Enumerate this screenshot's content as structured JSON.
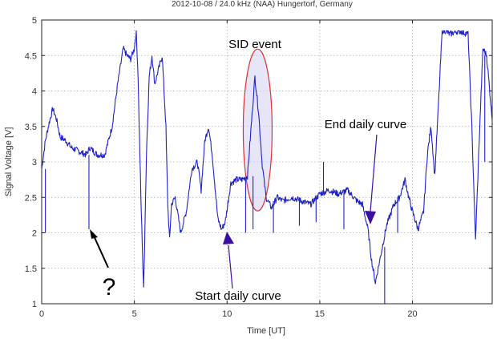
{
  "chart_data": {
    "type": "line",
    "title": "2012-10-08 / 24.0 kHz (NAA) Hungertorf, Germany",
    "xlabel": "Time [UT]",
    "ylabel": "Signal Voltage [V]",
    "xlim": [
      0,
      24.3
    ],
    "ylim": [
      1,
      5
    ],
    "x_ticks": [
      0,
      5,
      10,
      15,
      20
    ],
    "y_ticks": [
      1,
      1.5,
      2,
      2.5,
      3,
      3.5,
      4,
      4.5,
      5
    ],
    "y_tick_labels": [
      "1",
      "1.5",
      "2",
      "2.5",
      "3",
      "3.5",
      "4",
      "4.5",
      "5"
    ],
    "grid": true,
    "series": [
      {
        "color": "#1f22c8",
        "x": [
          0,
          0.2,
          0.4,
          0.6,
          0.8,
          1.0,
          1.3,
          1.6,
          2.0,
          2.4,
          2.6,
          3.0,
          3.4,
          3.8,
          4.1,
          4.4,
          4.6,
          4.8,
          5.0,
          5.1,
          5.2,
          5.35,
          5.5,
          5.65,
          5.8,
          5.95,
          6.1,
          6.3,
          6.5,
          6.7,
          6.8,
          6.9,
          7.0,
          7.2,
          7.5,
          7.8,
          8.1,
          8.4,
          8.6,
          8.8,
          9.0,
          9.2,
          9.5,
          9.7,
          9.9,
          10.2,
          10.5,
          10.8,
          11.1,
          11.3,
          11.5,
          11.7,
          11.9,
          12.1,
          12.4,
          12.7,
          13.0,
          13.5,
          14.0,
          14.5,
          15.0,
          15.5,
          16.0,
          16.5,
          17.0,
          17.3,
          17.6,
          17.8,
          18.0,
          18.3,
          18.6,
          19.0,
          19.3,
          19.6,
          19.8,
          20.0,
          20.3,
          20.6,
          20.8,
          21.0,
          21.2,
          21.4,
          21.6,
          21.8,
          22.0,
          22.5,
          23.0,
          23.2,
          23.4,
          23.6,
          23.8,
          24.0,
          24.3
        ],
        "y": [
          2.9,
          3.3,
          3.55,
          3.75,
          3.6,
          3.35,
          3.3,
          3.2,
          3.15,
          3.1,
          3.2,
          3.1,
          3.1,
          3.5,
          4.1,
          4.6,
          4.5,
          4.45,
          4.6,
          4.85,
          4.2,
          2.5,
          1.2,
          3.1,
          4.2,
          4.5,
          4.1,
          4.3,
          4.5,
          3.5,
          2.4,
          1.9,
          2.4,
          2.5,
          2.0,
          2.3,
          2.9,
          3.0,
          2.6,
          3.3,
          3.5,
          3.1,
          2.2,
          2.05,
          2.15,
          2.7,
          2.75,
          2.75,
          2.8,
          3.5,
          4.2,
          3.7,
          2.95,
          2.5,
          2.35,
          2.5,
          2.45,
          2.5,
          2.45,
          2.4,
          2.55,
          2.6,
          2.55,
          2.6,
          2.45,
          2.4,
          2.05,
          1.6,
          1.3,
          1.7,
          2.1,
          2.4,
          2.5,
          2.75,
          2.5,
          2.3,
          2.05,
          2.3,
          3.1,
          3.5,
          2.8,
          3.8,
          4.85,
          4.85,
          4.8,
          4.85,
          4.8,
          3.5,
          1.9,
          3.3,
          4.6,
          4.5,
          3.6
        ]
      }
    ],
    "spikes": [
      {
        "x": 0.2,
        "y": 2.9,
        "to": 2.0
      },
      {
        "x": 2.55,
        "y": 3.1,
        "to": 2.05
      },
      {
        "x": 11.0,
        "y": 2.75,
        "to": 2.0
      },
      {
        "x": 11.4,
        "y": 2.8,
        "to": 2.05
      },
      {
        "x": 12.5,
        "y": 2.45,
        "to": 2.0
      },
      {
        "x": 13.9,
        "y": 2.5,
        "to": 2.1
      },
      {
        "x": 14.8,
        "y": 2.45,
        "to": 2.15
      },
      {
        "x": 15.2,
        "y": 2.55,
        "to": 3.0
      },
      {
        "x": 16.3,
        "y": 2.6,
        "to": 2.05
      },
      {
        "x": 18.5,
        "y": 1.8,
        "to": 1.0
      },
      {
        "x": 19.2,
        "y": 2.5,
        "to": 2.0
      },
      {
        "x": 23.9,
        "y": 3.0,
        "to": 4.5
      }
    ],
    "annotations": [
      {
        "text": "SID event"
      },
      {
        "text": "End daily curve"
      },
      {
        "text": "Start daily curve"
      },
      {
        "text": "?"
      }
    ]
  },
  "colors": {
    "line": "#1f22c8",
    "ellipse": "#e03030",
    "ellipse_fill": "#c8c8f0",
    "arrowhead": "#3a0fa0",
    "grid": "#b0b0b0"
  }
}
